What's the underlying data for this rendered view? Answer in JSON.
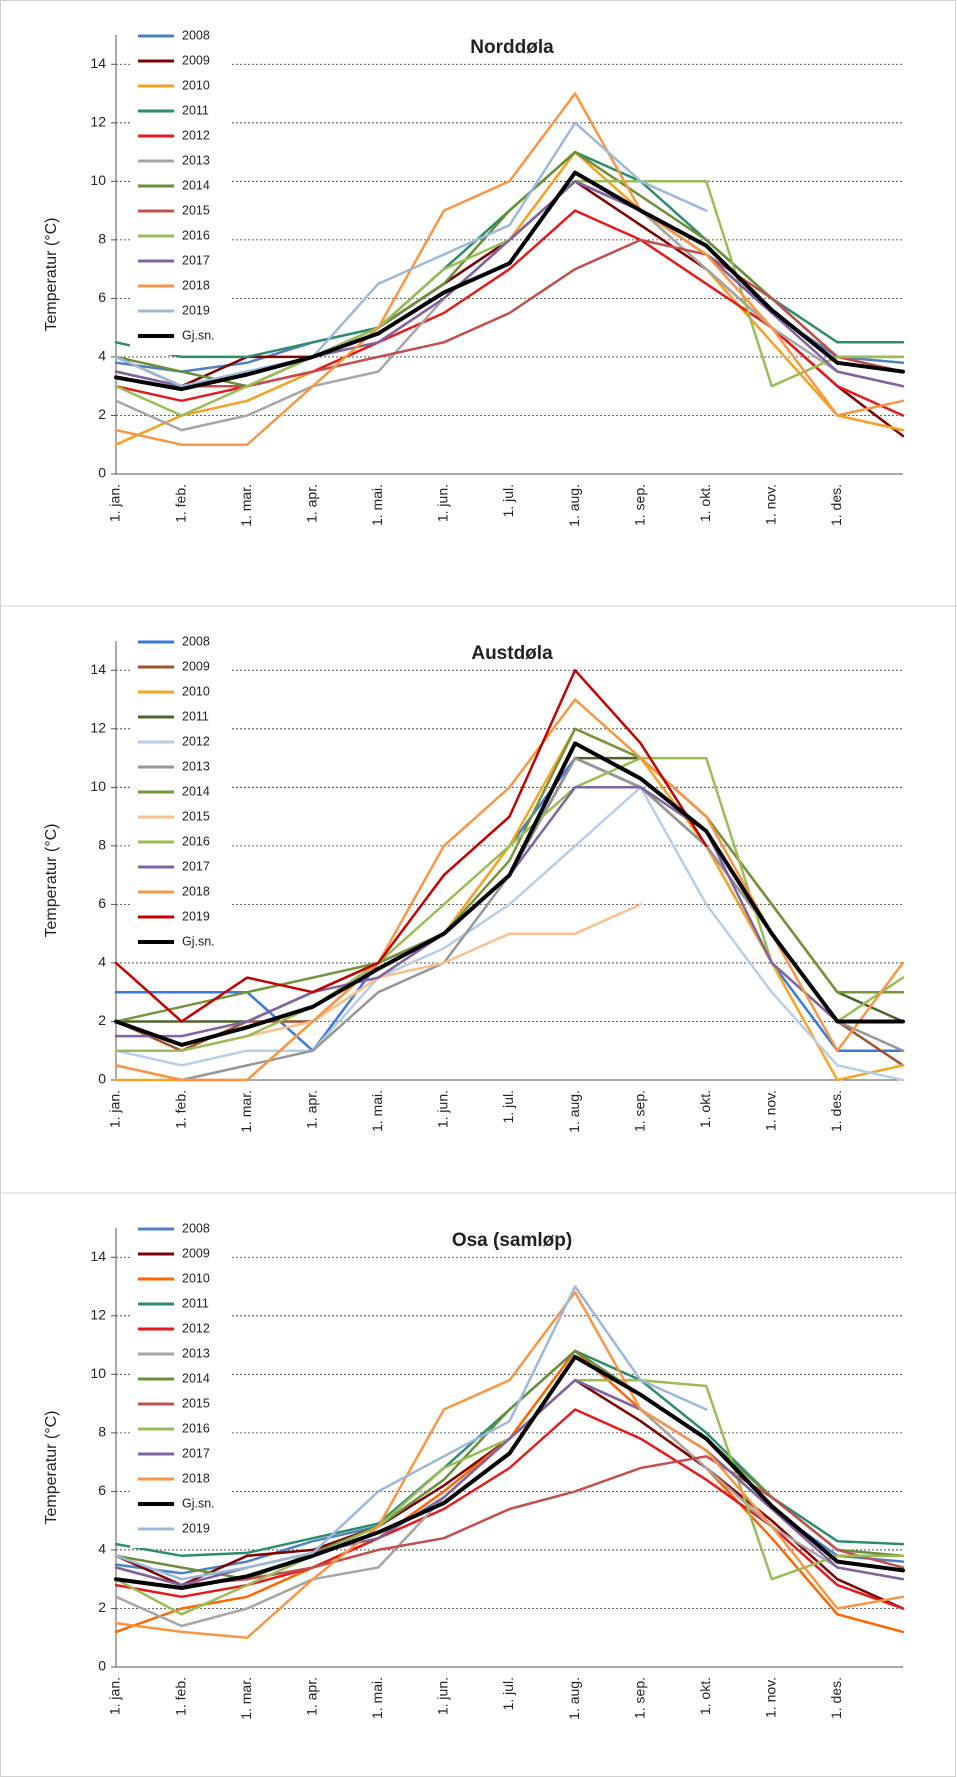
{
  "chart_data": [
    {
      "type": "line",
      "title": "Norddøla",
      "y_label": "Temperatur (°C)",
      "categories": [
        "1. jan.",
        "1. feb.",
        "1. mar.",
        "1. apr.",
        "1. mai.",
        "1. jun.",
        "1. jul.",
        "1. aug.",
        "1. sep.",
        "1. okt.",
        "1. nov.",
        "1. des.",
        null
      ],
      "ylim": [
        0,
        15
      ],
      "yticks": [
        0,
        2,
        4,
        6,
        8,
        10,
        12,
        14
      ],
      "grid": true,
      "series": [
        {
          "name": "2008",
          "color": "#4f81bd",
          "values": [
            3.8,
            3.5,
            3.8,
            4.5,
            5,
            6.5,
            8,
            10,
            9,
            7.5,
            5.5,
            4,
            3.8
          ]
        },
        {
          "name": "2009",
          "color": "#7f0000",
          "values": [
            4,
            3,
            4,
            4,
            5,
            6.5,
            8,
            10,
            8.5,
            7,
            5,
            3,
            1.3
          ]
        },
        {
          "name": "2010",
          "color": "#f5a01f",
          "values": [
            1,
            2,
            2.5,
            3.5,
            4.5,
            6,
            8,
            11,
            9,
            7,
            4.5,
            2,
            1.5
          ]
        },
        {
          "name": "2011",
          "color": "#2e8b6e",
          "values": [
            4.5,
            4,
            4,
            4.5,
            5,
            7,
            9,
            11,
            10,
            8,
            6,
            4.5,
            4.5
          ]
        },
        {
          "name": "2012",
          "color": "#e41a1c",
          "values": [
            3,
            2.5,
            3,
            3.5,
            4.5,
            5.5,
            7,
            9,
            8,
            6.5,
            5,
            3,
            2
          ]
        },
        {
          "name": "2013",
          "color": "#a6a6a6",
          "values": [
            2.5,
            1.5,
            2,
            3,
            3.5,
            6,
            8,
            10,
            9,
            7,
            5,
            3.5,
            3
          ]
        },
        {
          "name": "2014",
          "color": "#6b8e3a",
          "values": [
            4,
            3.5,
            3,
            4,
            5,
            6.5,
            9,
            11,
            9.5,
            8,
            6,
            4,
            4
          ]
        },
        {
          "name": "2015",
          "color": "#c0504d",
          "values": [
            3.5,
            3,
            3,
            3.5,
            4,
            4.5,
            5.5,
            7,
            8,
            7.5,
            6,
            4,
            3.5
          ]
        },
        {
          "name": "2016",
          "color": "#9bbb59",
          "values": [
            3,
            2,
            3,
            4,
            5,
            7,
            8,
            10,
            10,
            10,
            3,
            4,
            4
          ]
        },
        {
          "name": "2017",
          "color": "#8064a2",
          "values": [
            3.5,
            3,
            3.5,
            4,
            4.5,
            6,
            8,
            10,
            9,
            7.5,
            5.5,
            3.5,
            3
          ]
        },
        {
          "name": "2018",
          "color": "#f79646",
          "values": [
            1.5,
            1,
            1,
            3,
            5,
            9,
            10,
            13,
            9,
            7.5,
            5,
            2,
            2.5
          ]
        },
        {
          "name": "2019",
          "color": "#9db8d9",
          "values": [
            4,
            3,
            3.5,
            4,
            6.5,
            7.5,
            8.5,
            12,
            10,
            9,
            null,
            null,
            null
          ]
        },
        {
          "name": "Gj.sn.",
          "color": "#000000",
          "values": [
            3.3,
            2.9,
            3.4,
            4,
            4.8,
            6.2,
            7.2,
            10.3,
            9,
            7.8,
            5.6,
            3.8,
            3.5
          ]
        }
      ]
    },
    {
      "type": "line",
      "title": "Austdøla",
      "y_label": "Temperatur (°C)",
      "categories": [
        "1. jan.",
        "1. feb.",
        "1. mar.",
        "1. apr.",
        "1. mai.",
        "1. jun.",
        "1. jul.",
        "1. aug.",
        "1. sep.",
        "1. okt.",
        "1. nov.",
        "1. des.",
        null
      ],
      "ylim": [
        0,
        15
      ],
      "yticks": [
        0,
        2,
        4,
        6,
        8,
        10,
        12,
        14
      ],
      "grid": true,
      "series": [
        {
          "name": "2008",
          "color": "#3c78d8",
          "values": [
            3,
            3,
            3,
            1,
            4,
            5,
            8,
            11,
            10,
            8,
            4,
            1,
            1
          ]
        },
        {
          "name": "2009",
          "color": "#a0522d",
          "values": [
            2,
            1,
            2,
            2,
            4,
            5,
            7,
            11,
            10,
            8,
            5,
            2,
            0.5
          ]
        },
        {
          "name": "2010",
          "color": "#f5a623",
          "values": [
            0,
            0,
            0,
            2,
            3.5,
            5,
            8,
            12,
            11,
            8,
            4,
            0,
            0.5
          ]
        },
        {
          "name": "2011",
          "color": "#4f6228",
          "values": [
            2,
            2,
            2,
            3,
            4,
            5,
            7,
            11,
            11,
            9,
            6,
            3,
            2
          ]
        },
        {
          "name": "2012",
          "color": "#b9cde5",
          "values": [
            1,
            0.5,
            1,
            1,
            3.5,
            4.5,
            6,
            8,
            10,
            6,
            3,
            0.5,
            0
          ]
        },
        {
          "name": "2013",
          "color": "#969696",
          "values": [
            0.5,
            0,
            0.5,
            1,
            3,
            4,
            7,
            11,
            10,
            8,
            5,
            2,
            1
          ]
        },
        {
          "name": "2014",
          "color": "#77933c",
          "values": [
            2,
            2.5,
            3,
            3.5,
            4,
            5,
            7.5,
            12,
            11,
            9,
            6,
            3,
            3
          ]
        },
        {
          "name": "2015",
          "color": "#fac090",
          "values": [
            1,
            1,
            1.5,
            2,
            3.5,
            4,
            5,
            5,
            6,
            null,
            null,
            null,
            null
          ]
        },
        {
          "name": "2016",
          "color": "#9bbb59",
          "values": [
            1,
            1,
            1.5,
            2.5,
            4,
            6,
            8,
            10,
            11,
            11,
            4,
            2,
            3.5
          ]
        },
        {
          "name": "2017",
          "color": "#8064a2",
          "values": [
            1.5,
            1.5,
            2,
            3,
            3.5,
            5,
            7,
            10,
            10,
            8.5,
            4,
            2,
            2
          ]
        },
        {
          "name": "2018",
          "color": "#f79646",
          "values": [
            0.5,
            0,
            0,
            2,
            4,
            8,
            10,
            13,
            11,
            9,
            5,
            1,
            4
          ]
        },
        {
          "name": "2019",
          "color": "#c00000",
          "values": [
            4,
            2,
            3.5,
            3,
            4,
            7,
            9,
            14,
            11.5,
            8,
            null,
            null,
            null
          ]
        },
        {
          "name": "Gj.sn.",
          "color": "#000000",
          "values": [
            2,
            1.2,
            1.8,
            2.5,
            3.8,
            5,
            7,
            11.5,
            10.3,
            8.5,
            5,
            2,
            2
          ]
        }
      ]
    },
    {
      "type": "line",
      "title": "Osa (samløp)",
      "y_label": "Temperatur (°C)",
      "categories": [
        "1. jan.",
        "1. feb.",
        "1. mar.",
        "1. apr.",
        "1. mai.",
        "1. jun.",
        "1. jul.",
        "1. aug.",
        "1. sep.",
        "1. okt.",
        "1. nov.",
        "1. des.",
        null
      ],
      "ylim": [
        0,
        15
      ],
      "yticks": [
        0,
        2,
        4,
        6,
        8,
        10,
        12,
        14
      ],
      "grid": true,
      "series": [
        {
          "name": "2008",
          "color": "#4f81bd",
          "values": [
            3.5,
            3.2,
            3.6,
            4.3,
            4.8,
            6.2,
            7.8,
            9.8,
            8.8,
            7.4,
            5.4,
            3.8,
            3.6
          ]
        },
        {
          "name": "2009",
          "color": "#7f0000",
          "values": [
            3.8,
            2.8,
            3.8,
            4,
            4.8,
            6.2,
            7.8,
            9.8,
            8.4,
            6.8,
            5,
            3,
            2
          ]
        },
        {
          "name": "2010",
          "color": "#ff6600",
          "values": [
            1.2,
            2,
            2.4,
            3.4,
            4.4,
            6,
            7.8,
            10.8,
            8.8,
            6.8,
            4.4,
            1.8,
            1.2
          ]
        },
        {
          "name": "2011",
          "color": "#2e8b6e",
          "values": [
            4.2,
            3.8,
            3.9,
            4.4,
            4.9,
            6.8,
            8.8,
            10.8,
            9.8,
            8,
            5.8,
            4.3,
            4.2
          ]
        },
        {
          "name": "2012",
          "color": "#e41a1c",
          "values": [
            2.8,
            2.4,
            2.8,
            3.4,
            4.4,
            5.4,
            6.8,
            8.8,
            7.8,
            6.4,
            4.8,
            2.8,
            2
          ]
        },
        {
          "name": "2013",
          "color": "#a6a6a6",
          "values": [
            2.4,
            1.4,
            2,
            3,
            3.4,
            5.8,
            7.8,
            9.8,
            8.8,
            6.8,
            4.8,
            3.4,
            3
          ]
        },
        {
          "name": "2014",
          "color": "#6b8e3a",
          "values": [
            3.8,
            3.4,
            3,
            3.9,
            4.8,
            6.4,
            8.8,
            10.8,
            9.3,
            7.8,
            5.8,
            4,
            3.8
          ]
        },
        {
          "name": "2015",
          "color": "#c0504d",
          "values": [
            3.4,
            2.8,
            3,
            3.4,
            4,
            4.4,
            5.4,
            6,
            6.8,
            7.2,
            5.8,
            4,
            3.4
          ]
        },
        {
          "name": "2016",
          "color": "#9bbb59",
          "values": [
            3,
            1.8,
            2.8,
            3.8,
            4.8,
            6.8,
            7.8,
            9.8,
            9.8,
            9.6,
            3,
            3.8,
            3.8
          ]
        },
        {
          "name": "2017",
          "color": "#8064a2",
          "values": [
            3.4,
            2.8,
            3.4,
            3.9,
            4.4,
            5.8,
            7.8,
            9.8,
            8.8,
            7.4,
            5.4,
            3.4,
            3
          ]
        },
        {
          "name": "2018",
          "color": "#f79646",
          "values": [
            1.5,
            1.2,
            1,
            3,
            4.8,
            8.8,
            9.8,
            12.8,
            8.8,
            7.4,
            4.8,
            2,
            2.4
          ]
        },
        {
          "name": "Gj.sn.",
          "color": "#000000",
          "values": [
            3,
            2.7,
            3.1,
            3.8,
            4.6,
            5.6,
            7.3,
            10.6,
            9.3,
            7.8,
            5.5,
            3.6,
            3.3
          ]
        },
        {
          "name": "2019",
          "color": "#9db8d9",
          "values": [
            3.8,
            3,
            3.4,
            3.9,
            6,
            7.2,
            8.4,
            13,
            9.8,
            8.8,
            null,
            null,
            null
          ]
        }
      ]
    }
  ]
}
